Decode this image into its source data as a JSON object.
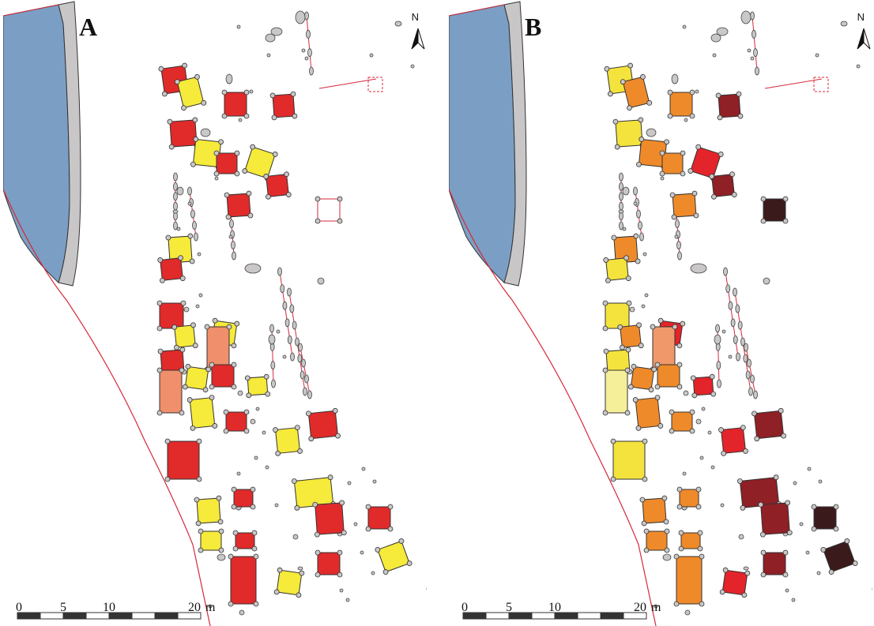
{
  "panels": [
    {
      "label": "A",
      "north": "N",
      "scale": {
        "ticks": [
          "0",
          "5",
          "10",
          "20"
        ],
        "unit": "m"
      }
    },
    {
      "label": "B",
      "north": "N",
      "scale": {
        "ticks": [
          "0",
          "5",
          "10",
          "20"
        ],
        "unit": "m"
      }
    }
  ],
  "colors": {
    "water": "#7b9ec4",
    "bank": "#c8c6c6",
    "boundary": "#d42a3a",
    "stone": "#c9c7c7",
    "a_red": "#e12a2a",
    "a_yellow": "#f6ea3a",
    "a_salmon": "#ef8f6c",
    "b_yellow": "#f4e33c",
    "b_orange": "#ef8a2a",
    "b_red": "#e3242a",
    "b_maroon": "#8e2026",
    "b_dark": "#3b1a1c",
    "b_pale": "#f6ef9a"
  }
}
